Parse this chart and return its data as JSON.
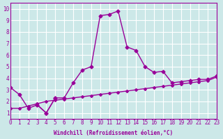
{
  "title": "",
  "xlabel": "Windchill (Refroidissement éolien,°C)",
  "ylabel": "",
  "bg_color": "#cce8e8",
  "line_color": "#990099",
  "grid_color": "#ffffff",
  "xlim": [
    0,
    23
  ],
  "ylim": [
    0.5,
    10.5
  ],
  "xticks": [
    0,
    1,
    2,
    3,
    4,
    5,
    6,
    7,
    8,
    9,
    10,
    11,
    12,
    13,
    14,
    15,
    16,
    17,
    18,
    19,
    20,
    21,
    22,
    23
  ],
  "yticks": [
    1,
    2,
    3,
    4,
    5,
    6,
    7,
    8,
    9,
    10
  ],
  "series1_x": [
    0,
    1,
    2,
    3,
    4,
    5,
    6,
    7,
    8,
    9,
    10,
    11,
    12,
    13,
    14,
    15,
    16,
    17,
    18,
    19,
    20,
    21,
    22,
    23
  ],
  "series1_y": [
    3.2,
    2.6,
    1.4,
    1.7,
    1.0,
    2.3,
    2.3,
    3.6,
    4.7,
    5.0,
    9.4,
    9.5,
    9.8,
    6.7,
    6.4,
    5.0,
    4.5,
    4.6,
    3.6,
    3.7,
    3.8,
    3.9,
    3.9,
    4.2
  ],
  "series2_x": [
    0,
    1,
    2,
    3,
    4,
    5,
    6,
    7,
    8,
    9,
    10,
    11,
    12,
    13,
    14,
    15,
    16,
    17,
    18,
    19,
    20,
    21,
    22,
    23
  ],
  "series2_y": [
    1.4,
    1.4,
    1.6,
    1.8,
    2.0,
    2.1,
    2.2,
    2.3,
    2.4,
    2.5,
    2.6,
    2.7,
    2.8,
    2.9,
    3.0,
    3.1,
    3.2,
    3.3,
    3.4,
    3.5,
    3.6,
    3.7,
    3.8,
    4.1
  ],
  "series3_x": [
    3,
    4,
    5
  ],
  "series3_y": [
    1.7,
    1.0,
    2.3
  ]
}
